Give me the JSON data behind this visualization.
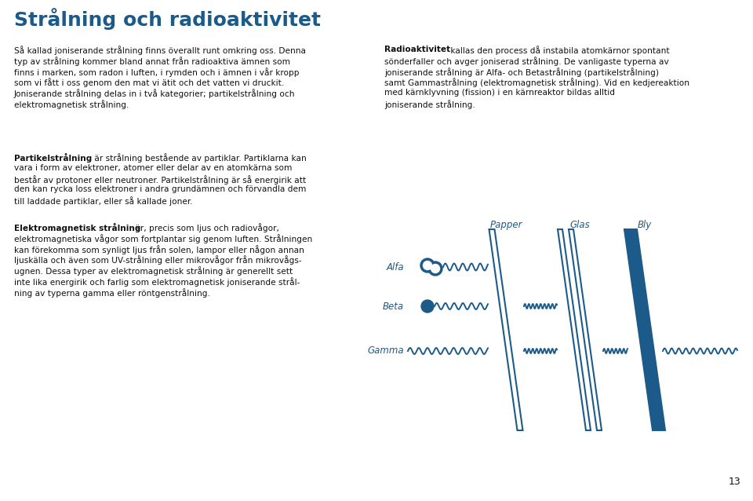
{
  "background_color": "#ffffff",
  "title": "Strålning och radioaktivitet",
  "title_color": "#1c5a8a",
  "title_fontsize": 18,
  "page_number": "13",
  "blue_color": "#1c5a8a",
  "text_color": "#111111",
  "diagram_color": "#1c5a8a",
  "diagram_labels_top": [
    "Papper",
    "Glas",
    "Bly"
  ],
  "diagram_labels_left": [
    "Alfa",
    "Beta",
    "Gamma"
  ],
  "col1_lines_p1": [
    "Så kallad joniserande strålning finns överallt runt omkring oss. Denna",
    "typ av strålning kommer bland annat från radioaktiva ämnen som",
    "finns i marken, som radon i luften, i rymden och i ämnen i vår kropp",
    "som vi fått i oss genom den mat vi ätit och det vatten vi druckit.",
    "Joniserande strålning delas in i två kategorier; partikelstrålning och",
    "elektromagnetisk strålning."
  ],
  "col2_line0_bold": "Radioaktivitet",
  "col2_line0_rest": " kallas den process då instabila atomkärnor spontant",
  "col2_lines_rest": [
    "sönderfaller och avger joniserad strålning. De vanligaste typerna av",
    "joniserande strålning är Alfa- och Betastrålning (partikelstrålning)",
    "samt Gammastrålning (elektromagnetisk strålning). Vid en kedjereaktion",
    "med kärnklyvning (fission) i en kärnreaktor bildas alltid",
    "joniserande strålning."
  ],
  "col1_p2_bold": "Partikelstrålning",
  "col1_p2_rest_line0": " är strålning bestående av partiklar. Partiklarna kan",
  "col1_p2_lines": [
    "vara i form av elektroner, atomer eller delar av en atomkärna som",
    "består av protoner eller neutroner. Partikelstrålning är så energirik att",
    "den kan rycka loss elektroner i andra grundämnen och förvandla dem",
    "till laddade partiklar, eller så kallade joner."
  ],
  "col1_p3_bold": "Elektromagnetisk strålning",
  "col1_p3_rest_line0": " är, precis som ljus och radiovågor,",
  "col1_p3_lines": [
    "elektromagnetiska vågor som fortplantar sig genom luften. Strålningen",
    "kan förekomma som synligt ljus från solen, lampor eller någon annan",
    "ljuskälla och även som UV-strålning eller mikrovågor från mikrovågs-",
    "ugnen. Dessa typer av elektromagnetisk strålning är generellt sett",
    "inte lika energirik och farlig som elektromagnetisk joniserande strål-",
    "ning av typerna gamma eller röntgenstrålning."
  ]
}
